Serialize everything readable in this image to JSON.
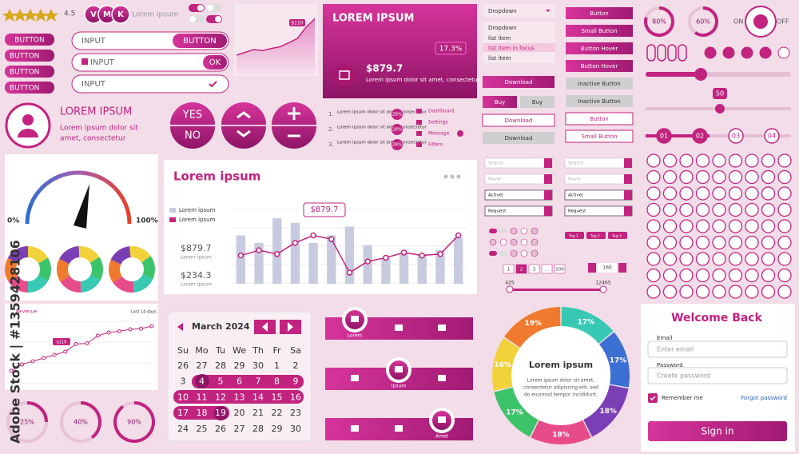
{
  "header": {
    "rating": "4.5",
    "avatars": [
      "V",
      "M",
      "K"
    ],
    "name": "Lorem ipsum"
  },
  "buttons": [
    "BUTTON",
    "BUTTON",
    "BUTTON",
    "BUTTON"
  ],
  "inputs": [
    {
      "placeholder": "INPUT",
      "button": "BUTTON"
    },
    {
      "placeholder": "INPUT",
      "button": "OK"
    },
    {
      "placeholder": "INPUT"
    }
  ],
  "mini_chart": {
    "label": "$110",
    "values": [
      30,
      35,
      40,
      38,
      42,
      45,
      52,
      60,
      80,
      95
    ]
  },
  "card": {
    "title": "LOREM IPSUM",
    "percent": "17.3%",
    "amount": "$879.7",
    "text": "Lorem ipsum dolor sit amet, consectetur"
  },
  "profile": {
    "title": "LOREM IPSUM",
    "text": [
      "Lorem ipsum dolor sit",
      "amet, consectetur"
    ]
  },
  "choice": {
    "yes": "YES",
    "no": "NO"
  },
  "steps": [
    {
      "n": "1.",
      "text": "Lorem ipsum dolor sit amet, consectetur",
      "pct": "28%"
    },
    {
      "n": "2.",
      "text": "Lorem ipsum dolor sit amet, consectetur",
      "pct": "28%"
    },
    {
      "n": "3.",
      "text": "Lorem ipsum dolor sit amet, consectetur",
      "pct": "28%"
    }
  ],
  "menu": [
    "Dashboard",
    "Settings",
    "Message",
    "Filters"
  ],
  "dropdown": {
    "closed": "Dropdown",
    "open": "Dropdown",
    "items": [
      "list item",
      "list item in focus",
      "list item"
    ]
  },
  "action_buttons": [
    "Button",
    "Small Button",
    "Button Hover",
    "Button Hover",
    "Inactive Button",
    "Inactive Button",
    "Button",
    "Small Button"
  ],
  "shop_buttons": [
    "Download",
    "Buy",
    "Buy",
    "Download",
    "Download"
  ],
  "progress": [
    {
      "value": 80,
      "label": "80%"
    },
    {
      "value": 60,
      "label": "60%"
    }
  ],
  "switch": {
    "on": "ON",
    "off": "OFF"
  },
  "slider": {
    "label": "50"
  },
  "stepper": [
    "01",
    "02",
    "03",
    "04"
  ],
  "gauge": {
    "min": "0%",
    "max": "100%"
  },
  "main_chart": {
    "type": "bar",
    "title": "Lorem ipsum",
    "legend": [
      "Lorem ipsum",
      "Lorem ipsum"
    ],
    "tooltip": "$879.7",
    "stats": [
      {
        "value": "$879.7",
        "label": "Lorem ipsum"
      },
      {
        "value": "$234.3",
        "label": "Lorem ipsum"
      }
    ],
    "ylim": [
      0,
      100
    ],
    "bars": [
      65,
      55,
      88,
      82,
      55,
      65,
      77,
      52,
      35,
      40,
      40,
      45,
      62
    ],
    "line": [
      38,
      45,
      40,
      55,
      65,
      60,
      15,
      30,
      35,
      42,
      38,
      40,
      65
    ]
  },
  "search": [
    "Search",
    "Hover",
    "Active|",
    "Request",
    "Search",
    "Hover",
    "Active|",
    "Request"
  ],
  "pagination": [
    "1",
    "2",
    "3",
    "...",
    "109"
  ],
  "counter": "160",
  "range": [
    "425",
    "12465"
  ],
  "tags": [
    "Tag 1",
    "Tag 2",
    "Tag 3"
  ],
  "line_chart": {
    "type": "line",
    "title": "Revenue",
    "period": "Last 14 days",
    "tooltip": "$110",
    "ylim": [
      0,
      100
    ],
    "values": [
      20,
      30,
      35,
      40,
      45,
      50,
      62,
      63,
      75,
      80,
      82,
      85,
      86,
      90
    ]
  },
  "rings": [
    {
      "value": 25,
      "label": "25%"
    },
    {
      "value": 40,
      "label": "40%"
    },
    {
      "value": 90,
      "label": "90%"
    }
  ],
  "calendar": {
    "month": "March 2024",
    "weekdays": [
      "Su",
      "Mo",
      "Tu",
      "We",
      "Th",
      "Fr",
      "Sa"
    ],
    "weeks": [
      [
        "26",
        "27",
        "28",
        "29",
        "30",
        "1",
        "2"
      ],
      [
        "3",
        "4",
        "5",
        "6",
        "7",
        "8",
        "9"
      ],
      [
        "10",
        "11",
        "12",
        "13",
        "14",
        "15",
        "16"
      ],
      [
        "17",
        "18",
        "19",
        "20",
        "21",
        "22",
        "23"
      ],
      [
        "24",
        "25",
        "26",
        "27",
        "28",
        "29",
        "30"
      ]
    ]
  },
  "tabs": [
    "Lorem",
    "Ipsum",
    "Amet"
  ],
  "donut": {
    "type": "pie",
    "title": "Lorem ipsum",
    "text": [
      "Lorem ipsum dolor sit amet,",
      "consectetur adipiscing elit, sed",
      "do eiusmod tempor incididunt."
    ],
    "values": [
      17,
      17,
      18,
      18,
      17,
      16,
      19
    ],
    "value_labels": [
      "17%",
      "17%",
      "18%",
      "18%",
      "17%",
      "16%",
      "19%"
    ],
    "colors": [
      "#38c9b4",
      "#3b6fd1",
      "#7b3fb5",
      "#e84b8a",
      "#3cc46a",
      "#f2d23a",
      "#f07a2e"
    ]
  },
  "login": {
    "title": "Welcome Back",
    "email_label": "Email",
    "email_placeholder": "Enter email",
    "password_label": "Password",
    "password_placeholder": "Create password",
    "remember": "Remember me",
    "forgot": "Forgot password",
    "submit": "Sign in"
  },
  "watermark": "Adobe Stock | #1359428106"
}
